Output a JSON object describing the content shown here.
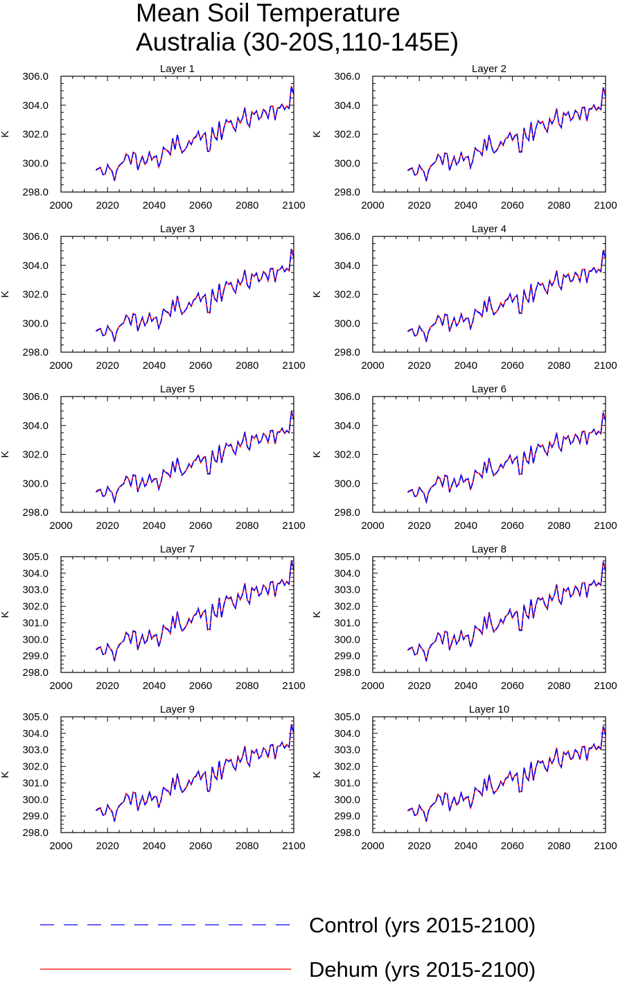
{
  "title": {
    "line1": "Mean Soil Temperature",
    "line2": "Australia (30-20S,110-145E)"
  },
  "legend": [
    {
      "name": "Control (yrs 2015-2100)",
      "color": "#0000ff",
      "style": "dashed"
    },
    {
      "name": "Dehum (yrs 2015-2100)",
      "color": "#ff0000",
      "style": "solid"
    }
  ],
  "chart_data": [
    {
      "type": "line",
      "title": "Layer 1",
      "ylabel": "K",
      "xlim": [
        2000,
        2100
      ],
      "ylim": [
        298,
        306
      ],
      "x_ticks": [
        2000,
        2020,
        2040,
        2060,
        2080,
        2100
      ],
      "x_tick_labels": [
        "2000",
        "2020",
        "2040",
        "2060",
        "2080",
        "2100"
      ],
      "y_ticks": [
        298,
        300,
        302,
        304,
        306
      ],
      "y_tick_labels": [
        "298.0",
        "300.0",
        "302.0",
        "304.0",
        "306.0"
      ],
      "x_start": 2015,
      "x_end": 2100,
      "offset": 0.0,
      "scale": 1.0
    },
    {
      "type": "line",
      "title": "Layer 2",
      "ylabel": "K",
      "xlim": [
        2000,
        2100
      ],
      "ylim": [
        298,
        306
      ],
      "x_ticks": [
        2000,
        2020,
        2040,
        2060,
        2080,
        2100
      ],
      "x_tick_labels": [
        "2000",
        "2020",
        "2040",
        "2060",
        "2080",
        "2100"
      ],
      "y_ticks": [
        298,
        300,
        302,
        304,
        306
      ],
      "y_tick_labels": [
        "298.0",
        "300.0",
        "302.0",
        "304.0",
        "306.0"
      ],
      "x_start": 2015,
      "x_end": 2100,
      "offset": -0.03,
      "scale": 0.99
    },
    {
      "type": "line",
      "title": "Layer 3",
      "ylabel": "K",
      "xlim": [
        2000,
        2100
      ],
      "ylim": [
        298,
        306
      ],
      "x_ticks": [
        2000,
        2020,
        2040,
        2060,
        2080,
        2100
      ],
      "x_tick_labels": [
        "2000",
        "2020",
        "2040",
        "2060",
        "2080",
        "2100"
      ],
      "y_ticks": [
        298,
        300,
        302,
        304,
        306
      ],
      "y_tick_labels": [
        "298.0",
        "300.0",
        "302.0",
        "304.0",
        "306.0"
      ],
      "x_start": 2015,
      "x_end": 2100,
      "offset": -0.06,
      "scale": 0.98
    },
    {
      "type": "line",
      "title": "Layer 4",
      "ylabel": "K",
      "xlim": [
        2000,
        2100
      ],
      "ylim": [
        298,
        306
      ],
      "x_ticks": [
        2000,
        2020,
        2040,
        2060,
        2080,
        2100
      ],
      "x_tick_labels": [
        "2000",
        "2020",
        "2040",
        "2060",
        "2080",
        "2100"
      ],
      "y_ticks": [
        298,
        300,
        302,
        304,
        306
      ],
      "y_tick_labels": [
        "298.0",
        "300.0",
        "302.0",
        "304.0",
        "306.0"
      ],
      "x_start": 2015,
      "x_end": 2100,
      "offset": -0.08,
      "scale": 0.97
    },
    {
      "type": "line",
      "title": "Layer 5",
      "ylabel": "K",
      "xlim": [
        2000,
        2100
      ],
      "ylim": [
        298,
        306
      ],
      "x_ticks": [
        2000,
        2020,
        2040,
        2060,
        2080,
        2100
      ],
      "x_tick_labels": [
        "2000",
        "2020",
        "2040",
        "2060",
        "2080",
        "2100"
      ],
      "y_ticks": [
        298,
        300,
        302,
        304,
        306
      ],
      "y_tick_labels": [
        "298.0",
        "300.0",
        "302.0",
        "304.0",
        "306.0"
      ],
      "x_start": 2015,
      "x_end": 2100,
      "offset": -0.1,
      "scale": 0.96
    },
    {
      "type": "line",
      "title": "Layer 6",
      "ylabel": "K",
      "xlim": [
        2000,
        2100
      ],
      "ylim": [
        298,
        306
      ],
      "x_ticks": [
        2000,
        2020,
        2040,
        2060,
        2080,
        2100
      ],
      "x_tick_labels": [
        "2000",
        "2020",
        "2040",
        "2060",
        "2080",
        "2100"
      ],
      "y_ticks": [
        298,
        300,
        302,
        304,
        306
      ],
      "y_tick_labels": [
        "298.0",
        "300.0",
        "302.0",
        "304.0",
        "306.0"
      ],
      "x_start": 2015,
      "x_end": 2100,
      "offset": -0.12,
      "scale": 0.95
    },
    {
      "type": "line",
      "title": "Layer 7",
      "ylabel": "K",
      "xlim": [
        2000,
        2100
      ],
      "ylim": [
        298,
        305
      ],
      "x_ticks": [
        2000,
        2020,
        2040,
        2060,
        2080,
        2100
      ],
      "x_tick_labels": [
        "2000",
        "2020",
        "2040",
        "2060",
        "2080",
        "2100"
      ],
      "y_ticks": [
        298,
        299,
        300,
        301,
        302,
        303,
        304,
        305
      ],
      "y_tick_labels": [
        "298.0",
        "299.0",
        "300.0",
        "301.0",
        "302.0",
        "303.0",
        "304.0",
        "305.0"
      ],
      "x_start": 2015,
      "x_end": 2100,
      "offset": -0.14,
      "scale": 0.93
    },
    {
      "type": "line",
      "title": "Layer 8",
      "ylabel": "K",
      "xlim": [
        2000,
        2100
      ],
      "ylim": [
        298,
        305
      ],
      "x_ticks": [
        2000,
        2020,
        2040,
        2060,
        2080,
        2100
      ],
      "x_tick_labels": [
        "2000",
        "2020",
        "2040",
        "2060",
        "2080",
        "2100"
      ],
      "y_ticks": [
        298,
        299,
        300,
        301,
        302,
        303,
        304,
        305
      ],
      "y_tick_labels": [
        "298.0",
        "299.0",
        "300.0",
        "301.0",
        "302.0",
        "303.0",
        "304.0",
        "305.0"
      ],
      "x_start": 2015,
      "x_end": 2100,
      "offset": -0.16,
      "scale": 0.92
    },
    {
      "type": "line",
      "title": "Layer 9",
      "ylabel": "K",
      "xlim": [
        2000,
        2100
      ],
      "ylim": [
        298,
        305
      ],
      "x_ticks": [
        2000,
        2020,
        2040,
        2060,
        2080,
        2100
      ],
      "x_tick_labels": [
        "2000",
        "2020",
        "2040",
        "2060",
        "2080",
        "2100"
      ],
      "y_ticks": [
        298,
        299,
        300,
        301,
        302,
        303,
        304,
        305
      ],
      "y_tick_labels": [
        "298.0",
        "299.0",
        "300.0",
        "301.0",
        "302.0",
        "303.0",
        "304.0",
        "305.0"
      ],
      "x_start": 2015,
      "x_end": 2100,
      "offset": -0.18,
      "scale": 0.9
    },
    {
      "type": "line",
      "title": "Layer 10",
      "ylabel": "K",
      "xlim": [
        2000,
        2100
      ],
      "ylim": [
        298,
        305
      ],
      "x_ticks": [
        2000,
        2020,
        2040,
        2060,
        2080,
        2100
      ],
      "x_tick_labels": [
        "2000",
        "2020",
        "2040",
        "2060",
        "2080",
        "2100"
      ],
      "y_ticks": [
        298,
        299,
        300,
        301,
        302,
        303,
        304,
        305
      ],
      "y_tick_labels": [
        "298.0",
        "299.0",
        "300.0",
        "301.0",
        "302.0",
        "303.0",
        "304.0",
        "305.0"
      ],
      "x_start": 2015,
      "x_end": 2100,
      "offset": -0.2,
      "scale": 0.88
    }
  ]
}
